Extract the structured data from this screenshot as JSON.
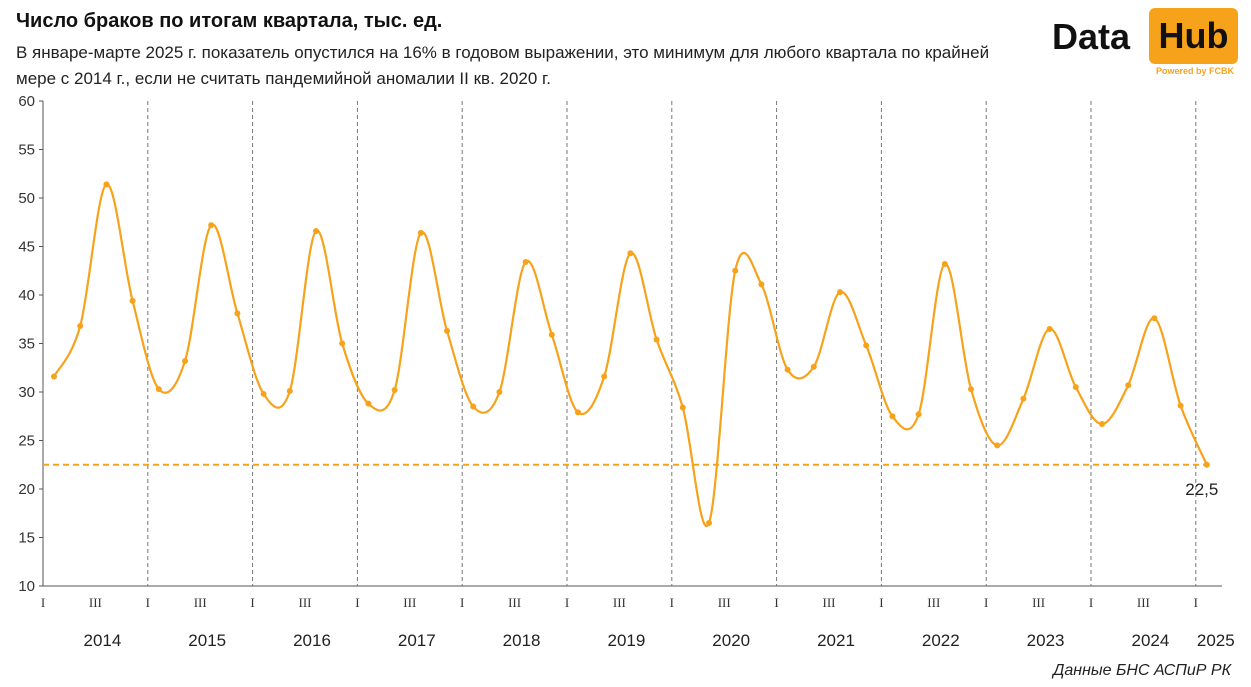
{
  "title": "Число браков по итогам квартала, тыс. ед.",
  "subtitle": "В январе-марте 2025 г. показатель опустился на 16% в годовом выражении, это минимум для любого квартала по  крайней мере с 2014 г., если не считать пандемийной аномалии II кв. 2020 г.",
  "logo": {
    "data": "Data",
    "hub": "Hub",
    "powered": "Powered by FCBK"
  },
  "source": "Данные БНС АСПиР РК",
  "colors": {
    "line": "#f7a21b",
    "reference": "#f7a21b",
    "axis": "#555555"
  },
  "chart_data": {
    "type": "line",
    "title": "Число браков по итогам квартала, тыс. ед.",
    "ylim": [
      10,
      60
    ],
    "yticks": [
      10,
      15,
      20,
      25,
      30,
      35,
      40,
      45,
      50,
      55,
      60
    ],
    "quarter_ticks": [
      "I",
      "III"
    ],
    "years": [
      "2014",
      "2015",
      "2016",
      "2017",
      "2018",
      "2019",
      "2020",
      "2021",
      "2022",
      "2023",
      "2024",
      "2025"
    ],
    "series": [
      {
        "values": [
          31.6,
          36.8,
          51.4,
          39.4,
          30.3,
          33.2,
          47.2,
          38.1,
          29.8,
          30.1,
          46.6,
          35.0,
          28.8,
          30.2,
          46.4,
          36.3,
          28.5,
          30.0,
          43.4,
          35.9,
          27.9,
          31.6,
          44.3,
          35.4,
          28.4,
          16.5,
          42.5,
          41.1,
          32.3,
          32.6,
          40.3,
          34.8,
          27.5,
          27.7,
          43.2,
          30.3,
          24.5,
          29.3,
          36.5,
          30.5,
          26.7,
          30.7,
          37.6,
          28.6,
          22.5
        ]
      }
    ],
    "reference_line": 22.5,
    "last_value_label": "22,5",
    "grid": "vertical dashed at year boundaries"
  }
}
